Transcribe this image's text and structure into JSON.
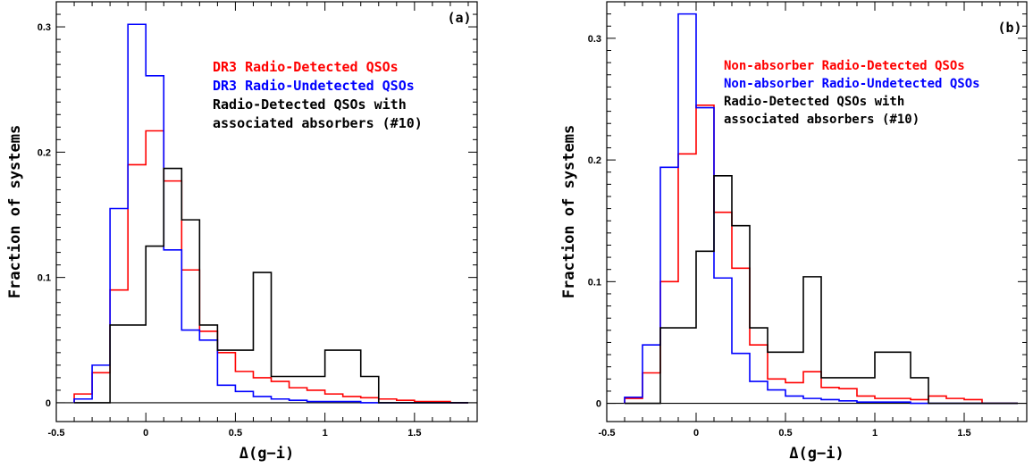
{
  "chart_data": [
    {
      "type": "step-histogram",
      "panel_label": "(a)",
      "xlabel": "Δ(g−i)",
      "ylabel": "Fraction of systems",
      "xlim": [
        -0.5,
        1.85
      ],
      "ylim": [
        -0.015,
        0.32
      ],
      "xticks": [
        -0.5,
        0,
        0.5,
        1,
        1.5
      ],
      "xtick_labels": [
        "-0.5",
        "0",
        "0.5",
        "1",
        "1.5"
      ],
      "yticks": [
        0,
        0.1,
        0.2,
        0.3
      ],
      "ytick_labels": [
        "0",
        "0.1",
        "0.2",
        "0.3"
      ],
      "bin_edges": [
        -0.4,
        -0.3,
        -0.2,
        -0.1,
        0.0,
        0.1,
        0.2,
        0.3,
        0.4,
        0.5,
        0.6,
        0.7,
        0.8,
        0.9,
        1.0,
        1.1,
        1.2,
        1.3,
        1.4,
        1.5,
        1.6,
        1.7,
        1.8
      ],
      "legend_lines": [
        "DR3 Radio-Detected QSOs",
        "DR3 Radio-Undetected QSOs",
        "Radio-Detected QSOs with",
        "associated absorbers (#10)"
      ],
      "series": [
        {
          "name": "DR3 Radio-Detected QSOs",
          "color": "#ff0000",
          "values": [
            0.007,
            0.024,
            0.09,
            0.19,
            0.217,
            0.177,
            0.106,
            0.057,
            0.04,
            0.025,
            0.02,
            0.017,
            0.012,
            0.01,
            0.007,
            0.005,
            0.004,
            0.003,
            0.002,
            0.001,
            0.001,
            0.0
          ]
        },
        {
          "name": "DR3 Radio-Undetected QSOs",
          "color": "#0000ff",
          "values": [
            0.003,
            0.03,
            0.155,
            0.302,
            0.261,
            0.122,
            0.058,
            0.05,
            0.014,
            0.009,
            0.005,
            0.003,
            0.002,
            0.001,
            0.001,
            0.001,
            0.0,
            0.0,
            0.0,
            0.0,
            0.0,
            0.0
          ]
        },
        {
          "name": "Radio-Detected QSOs with associated absorbers (#10)",
          "color": "#000000",
          "values": [
            0.0,
            0.0,
            0.062,
            0.062,
            0.125,
            0.187,
            0.146,
            0.062,
            0.042,
            0.042,
            0.104,
            0.021,
            0.021,
            0.021,
            0.042,
            0.042,
            0.021,
            0.0,
            0.0,
            0.0,
            0.0,
            0.0
          ]
        }
      ]
    },
    {
      "type": "step-histogram",
      "panel_label": "(b)",
      "xlabel": "Δ(g−i)",
      "ylabel": "Fraction of systems",
      "xlim": [
        -0.5,
        1.85
      ],
      "ylim": [
        -0.015,
        0.33
      ],
      "xticks": [
        -0.5,
        0,
        0.5,
        1,
        1.5
      ],
      "xtick_labels": [
        "-0.5",
        "0",
        "0.5",
        "1",
        "1.5"
      ],
      "yticks": [
        0,
        0.1,
        0.2,
        0.3
      ],
      "ytick_labels": [
        "0",
        "0.1",
        "0.2",
        "0.3"
      ],
      "bin_edges": [
        -0.4,
        -0.3,
        -0.2,
        -0.1,
        0.0,
        0.1,
        0.2,
        0.3,
        0.4,
        0.5,
        0.6,
        0.7,
        0.8,
        0.9,
        1.0,
        1.1,
        1.2,
        1.3,
        1.4,
        1.5,
        1.6,
        1.7,
        1.8
      ],
      "legend_lines": [
        "Non-absorber Radio-Detected QSOs",
        "Non-absorber Radio-Undetected QSOs",
        "Radio-Detected QSOs with",
        "associated absorbers (#10)"
      ],
      "series": [
        {
          "name": "Non-absorber Radio-Detected QSOs",
          "color": "#ff0000",
          "values": [
            0.004,
            0.025,
            0.1,
            0.205,
            0.245,
            0.157,
            0.111,
            0.048,
            0.02,
            0.017,
            0.026,
            0.013,
            0.012,
            0.006,
            0.004,
            0.004,
            0.003,
            0.006,
            0.004,
            0.003,
            0.0,
            0.0
          ]
        },
        {
          "name": "Non-absorber Radio-Undetected QSOs",
          "color": "#0000ff",
          "values": [
            0.005,
            0.048,
            0.194,
            0.32,
            0.243,
            0.103,
            0.041,
            0.018,
            0.011,
            0.006,
            0.004,
            0.003,
            0.002,
            0.001,
            0.001,
            0.001,
            0.0,
            0.0,
            0.0,
            0.0,
            0.0,
            0.0
          ]
        },
        {
          "name": "Radio-Detected QSOs with associated absorbers (#10)",
          "color": "#000000",
          "values": [
            0.0,
            0.0,
            0.062,
            0.062,
            0.125,
            0.187,
            0.146,
            0.062,
            0.042,
            0.042,
            0.104,
            0.021,
            0.021,
            0.021,
            0.042,
            0.042,
            0.021,
            0.0,
            0.0,
            0.0,
            0.0,
            0.0
          ]
        }
      ]
    }
  ]
}
